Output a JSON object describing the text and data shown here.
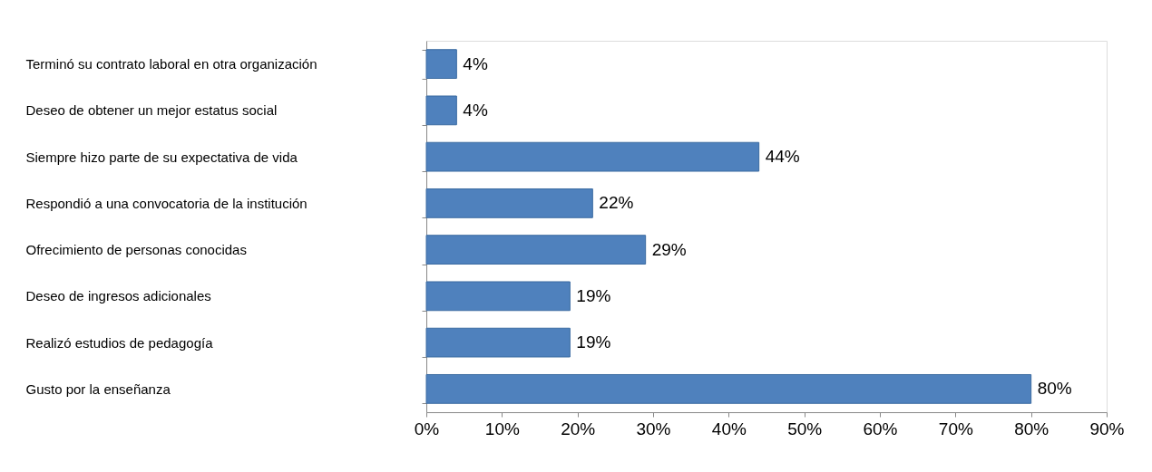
{
  "chart_data": {
    "type": "bar",
    "orientation": "horizontal",
    "categories": [
      "Terminó su contrato laboral en otra organización",
      "Deseo de obtener un mejor estatus social",
      "Siempre hizo parte de su expectativa de vida",
      "Respondió a una convocatoria de la institución",
      "Ofrecimiento de personas conocidas",
      "Deseo de ingresos adicionales",
      "Realizó estudios de pedagogía",
      "Gusto por la enseñanza"
    ],
    "values": [
      4,
      4,
      44,
      22,
      29,
      19,
      19,
      80
    ],
    "value_labels": [
      "4%",
      "4%",
      "44%",
      "22%",
      "29%",
      "19%",
      "19%",
      "80%"
    ],
    "color": "#4f81bd",
    "xlim": [
      0,
      90
    ],
    "xticks": [
      {
        "value": 0,
        "label": "0%"
      },
      {
        "value": 10,
        "label": "10%"
      },
      {
        "value": 20,
        "label": "20%"
      },
      {
        "value": 30,
        "label": "30%"
      },
      {
        "value": 40,
        "label": "40%"
      },
      {
        "value": 50,
        "label": "50%"
      },
      {
        "value": 60,
        "label": "60%"
      },
      {
        "value": 70,
        "label": "70%"
      },
      {
        "value": 80,
        "label": "80%"
      },
      {
        "value": 90,
        "label": "90%"
      }
    ],
    "grid": false
  }
}
